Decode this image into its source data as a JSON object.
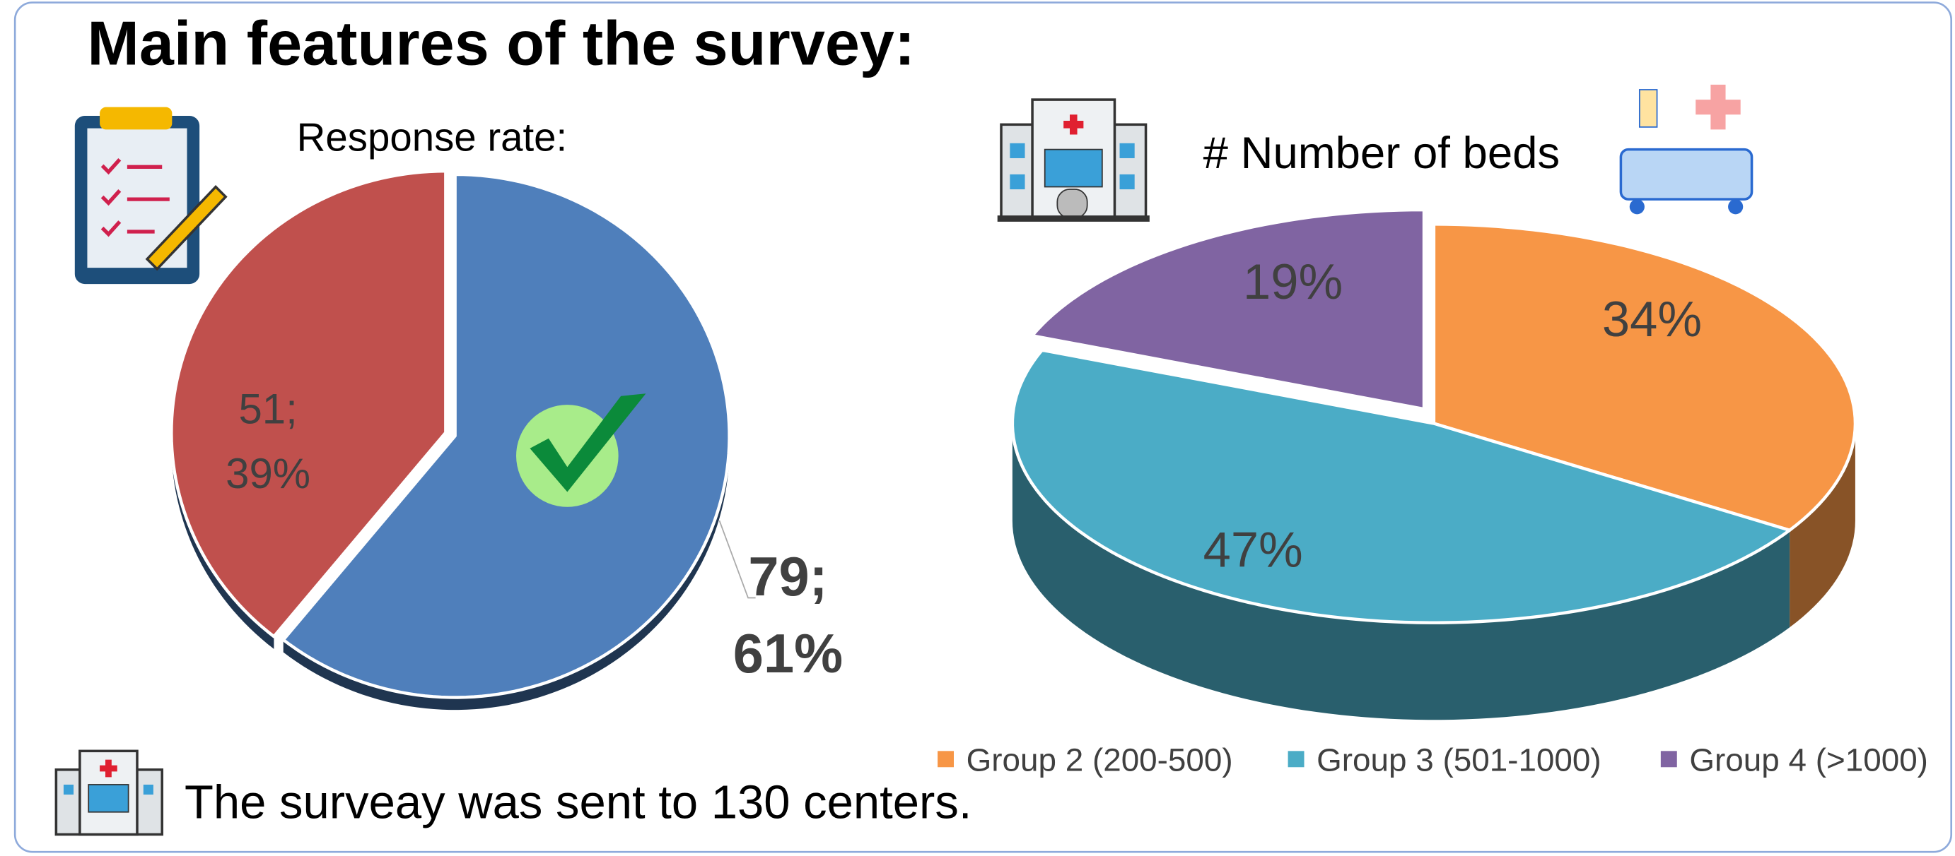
{
  "title": "Main features of the survey:",
  "footer": "The surveay was sent to 130 centers.",
  "chart_data": [
    {
      "type": "pie",
      "title": "Response rate:",
      "values": [
        79,
        51
      ],
      "value_labels": [
        "79; 61%",
        "51; 39%"
      ],
      "colors": [
        "#4f7fbb",
        "#c0504d"
      ]
    },
    {
      "type": "pie3d",
      "title": "# Number of beds",
      "categories": [
        "Group 2 (200-500)",
        "Group 3 (501-1000)",
        "Group 4 (>1000)"
      ],
      "values": [
        34,
        47,
        19
      ],
      "value_labels": [
        "34%",
        "47%",
        "19%"
      ],
      "colors": [
        "#f79646",
        "#4bacc6",
        "#8064a2"
      ],
      "legend": "bottom"
    }
  ]
}
